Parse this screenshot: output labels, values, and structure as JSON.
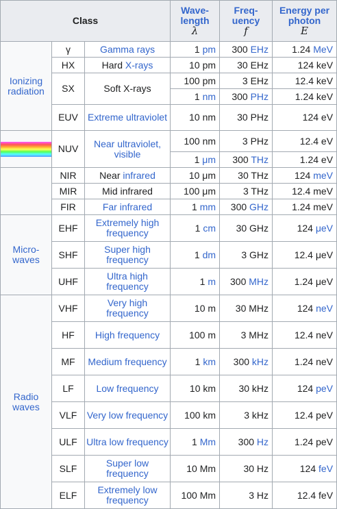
{
  "header": {
    "class": "Class",
    "wavelength": "Wave-length",
    "wavelength_symbol": "λ",
    "frequency": "Freq-uency",
    "frequency_symbol": "f",
    "energy": "Energy per photon",
    "energy_symbol": "E"
  },
  "groups": {
    "ionizing": "Ionizing radiation",
    "microwaves": "Micro-waves",
    "radio": "Radio waves"
  },
  "rows": [
    {
      "code": "γ",
      "name": "Gamma rays",
      "wl_num": "1",
      "wl_unit": "pm",
      "fr_num": "300",
      "fr_unit": "EHz",
      "en_num": "1.24",
      "en_unit": "MeV"
    },
    {
      "code": "HX",
      "name_pre": "Hard",
      "name_link": "X-rays",
      "wl": "10 pm",
      "fr": "30 EHz",
      "en": "124 keV"
    },
    {
      "code": "SX",
      "name": "Soft X-rays",
      "wl": "100 pm",
      "fr": "3 EHz",
      "en": "12.4 keV"
    },
    {
      "wl_num": "1",
      "wl_unit": "nm",
      "fr_num": "300",
      "fr_unit": "PHz",
      "en": "1.24 keV"
    },
    {
      "code": "EUV",
      "name": "Extreme ultraviolet",
      "wl": "10 nm",
      "fr": "30 PHz",
      "en": "124 eV"
    },
    {
      "code": "NUV",
      "name": "Near ultraviolet, visible",
      "wl": "100 nm",
      "fr": "3 PHz",
      "en": "12.4 eV"
    },
    {
      "wl_num": "1",
      "wl_unit": "μm",
      "fr_num": "300",
      "fr_unit": "THz",
      "en": "1.24 eV"
    },
    {
      "code": "NIR",
      "name_pre": "Near",
      "name_link": "infrared",
      "wl": "10 μm",
      "fr": "30 THz",
      "en_num": "124",
      "en_unit": "meV"
    },
    {
      "code": "MIR",
      "name": "Mid infrared",
      "wl": "100 μm",
      "fr": "3 THz",
      "en": "12.4 meV"
    },
    {
      "code": "FIR",
      "name": "Far infrared",
      "wl_num": "1",
      "wl_unit": "mm",
      "fr_num": "300",
      "fr_unit": "GHz",
      "en": "1.24 meV"
    },
    {
      "code": "EHF",
      "name": "Extremely high frequency",
      "wl_num": "1",
      "wl_unit": "cm",
      "fr": "30 GHz",
      "en_num": "124",
      "en_unit": "μeV"
    },
    {
      "code": "SHF",
      "name": "Super high frequency",
      "wl_num": "1",
      "wl_unit": "dm",
      "fr": "3 GHz",
      "en": "12.4 μeV"
    },
    {
      "code": "UHF",
      "name": "Ultra high frequency",
      "wl_num": "1",
      "wl_unit": "m",
      "fr_num": "300",
      "fr_unit": "MHz",
      "en": "1.24 μeV"
    },
    {
      "code": "VHF",
      "name": "Very high frequency",
      "wl": "10 m",
      "fr": "30 MHz",
      "en_num": "124",
      "en_unit": "neV"
    },
    {
      "code": "HF",
      "name": "High frequency",
      "wl": "100 m",
      "fr": "3 MHz",
      "en": "12.4 neV"
    },
    {
      "code": "MF",
      "name": "Medium frequency",
      "wl_num": "1",
      "wl_unit": "km",
      "fr_num": "300",
      "fr_unit": "kHz",
      "en": "1.24 neV"
    },
    {
      "code": "LF",
      "name": "Low frequency",
      "wl": "10 km",
      "fr": "30 kHz",
      "en_num": "124",
      "en_unit": "peV"
    },
    {
      "code": "VLF",
      "name": "Very low frequency",
      "wl": "100 km",
      "fr": "3 kHz",
      "en": "12.4 peV"
    },
    {
      "code": "ULF",
      "name": "Ultra low frequency",
      "wl_num": "1",
      "wl_unit": "Mm",
      "fr_num": "300",
      "fr_unit": "Hz",
      "en": "1.24 peV"
    },
    {
      "code": "SLF",
      "name": "Super low frequency",
      "wl": "10 Mm",
      "fr": "30 Hz",
      "en_num": "124",
      "en_unit": "feV"
    },
    {
      "code": "ELF",
      "name": "Extremely low frequency",
      "wl": "100 Mm",
      "fr": "3 Hz",
      "en": "12.4 feV"
    }
  ]
}
